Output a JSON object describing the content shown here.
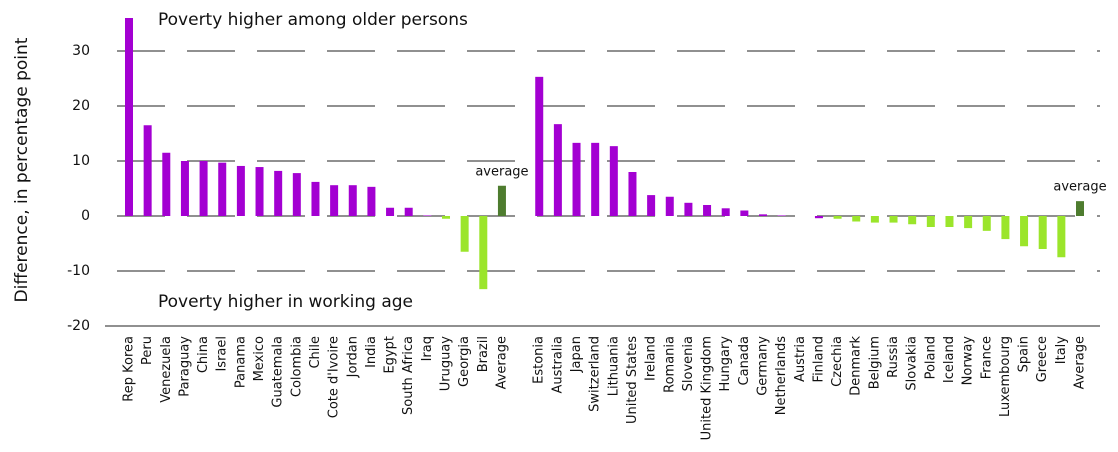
{
  "chart_data": {
    "type": "bar",
    "y_label": "Difference, in percentage point",
    "annotations": [
      "Poverty higher among older persons",
      "Poverty higher in working age",
      "average",
      "average"
    ],
    "categories": [
      "Rep Korea",
      "Peru",
      "Venezuela",
      "Paraguay",
      "China",
      "Israel",
      "Panama",
      "Mexico",
      "Guatemala",
      "Colombia",
      "Chile",
      "Cote d'Ivoire",
      "Jordan",
      "India",
      "Egypt",
      "South Africa",
      "Iraq",
      "Uruguay",
      "Georgia",
      "Brazil",
      "Average",
      null,
      "Estonia",
      "Australia",
      "Japan",
      "Switzerland",
      "Lithuania",
      "United States",
      "Ireland",
      "Romania",
      "Slovenia",
      "United Kingdom",
      "Hungary",
      "Canada",
      "Germany",
      "Netherlands",
      "Austria",
      "Finland",
      "Czechia",
      "Denmark",
      "Belgium",
      "Russia",
      "Slovakia",
      "Poland",
      "Iceland",
      "Norway",
      "France",
      "Luxembourg",
      "Spain",
      "Greece",
      "Italy",
      "Average"
    ],
    "values": [
      36,
      16.5,
      11.5,
      10,
      10,
      9.7,
      9.1,
      8.9,
      8.2,
      7.8,
      6.2,
      5.6,
      5.6,
      5.3,
      1.5,
      1.5,
      0.1,
      -0.5,
      -6.5,
      -13.3,
      5.5,
      null,
      25.3,
      16.7,
      13.3,
      13.3,
      12.7,
      8,
      3.8,
      3.5,
      2.4,
      2,
      1.4,
      1,
      0.3,
      0.1,
      0,
      -0.4,
      -0.5,
      -1,
      -1.2,
      -1.2,
      -1.5,
      -2,
      -2,
      -2.2,
      -2.7,
      -4.2,
      -5.5,
      -6,
      -7.5,
      2.7
    ],
    "colors": [
      "#a300d2",
      "#a300d2",
      "#a300d2",
      "#a300d2",
      "#a300d2",
      "#a300d2",
      "#a300d2",
      "#a300d2",
      "#a300d2",
      "#a300d2",
      "#a300d2",
      "#a300d2",
      "#a300d2",
      "#a300d2",
      "#a300d2",
      "#a300d2",
      "#a300d2",
      "#9be52b",
      "#9be52b",
      "#9be52b",
      "#4e7c2f",
      null,
      "#a300d2",
      "#a300d2",
      "#a300d2",
      "#a300d2",
      "#a300d2",
      "#a300d2",
      "#a300d2",
      "#a300d2",
      "#a300d2",
      "#a300d2",
      "#a300d2",
      "#a300d2",
      "#a300d2",
      "#a300d2",
      "#a300d2",
      "#a300d2",
      "#9be52b",
      "#9be52b",
      "#9be52b",
      "#9be52b",
      "#9be52b",
      "#9be52b",
      "#9be52b",
      "#9be52b",
      "#9be52b",
      "#9be52b",
      "#9be52b",
      "#9be52b",
      "#9be52b",
      "#4e7c2f"
    ],
    "ylim": [
      -20,
      36
    ],
    "yticks": [
      -20,
      -10,
      0,
      10,
      20,
      30
    ],
    "grid": true
  }
}
